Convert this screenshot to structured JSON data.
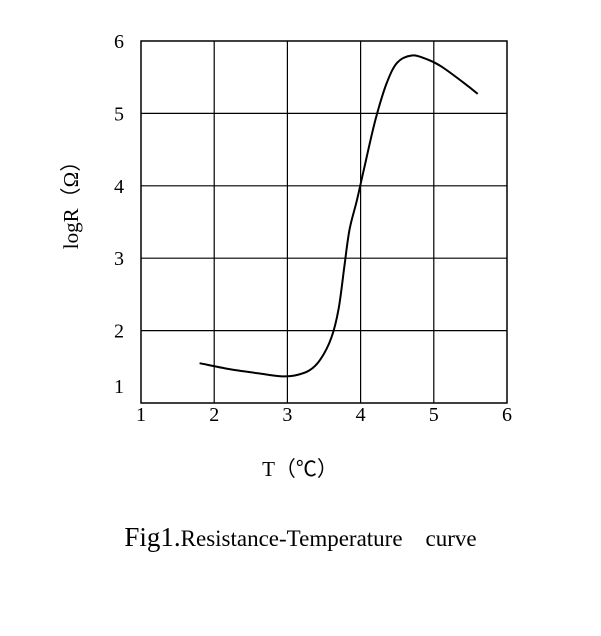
{
  "chart_data": {
    "type": "line",
    "xlabel": "T（℃）",
    "ylabel": "logR（Ω）",
    "xlim": [
      1,
      6
    ],
    "ylim": [
      1,
      6
    ],
    "x_ticks": [
      "1",
      "2",
      "3",
      "4",
      "5",
      "6"
    ],
    "y_ticks": [
      "1",
      "2",
      "3",
      "4",
      "5",
      "6"
    ],
    "grid": true,
    "series": [
      {
        "x": [
          1.8,
          2.2,
          2.6,
          2.9,
          3.1,
          3.3,
          3.45,
          3.6,
          3.7,
          3.78,
          3.85,
          3.95,
          4.05,
          4.2,
          4.35,
          4.5,
          4.7,
          4.9,
          5.1,
          5.4,
          5.6
        ],
        "y": [
          1.55,
          1.47,
          1.41,
          1.37,
          1.38,
          1.45,
          1.6,
          1.9,
          2.3,
          2.9,
          3.4,
          3.8,
          4.25,
          4.9,
          5.4,
          5.7,
          5.8,
          5.75,
          5.65,
          5.43,
          5.27
        ]
      }
    ]
  },
  "caption": {
    "fig": "Fig1.",
    "text": "Resistance-Temperature    curve"
  }
}
